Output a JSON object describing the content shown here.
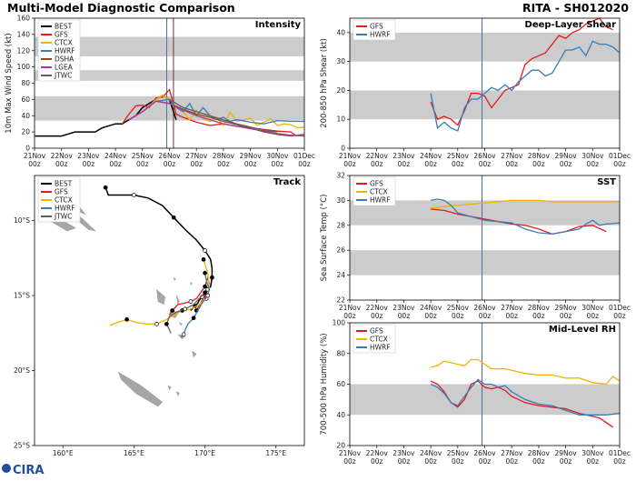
{
  "header": {
    "title": "Multi-Model Diagnostic Comparison",
    "storm": "RITA - SH012020"
  },
  "colors": {
    "BEST": "#000000",
    "GFS": "#e41a1c",
    "CTCX": "#f0b400",
    "HWRF": "#377eb8",
    "DSHA": "#8c4a1a",
    "LGEA": "#a33aa3",
    "JTWC": "#606060",
    "band": "#cccccc",
    "vline_blue": "#4a6fa5",
    "vline_dark": "#7b2c3a",
    "land": "#a6a6a6"
  },
  "logo": {
    "text": "CIRA"
  },
  "chart_data": [
    {
      "id": "intensity",
      "type": "line",
      "title": "Intensity",
      "ylabel": "10m Max Wind Speed (kt)",
      "ylim": [
        0,
        160
      ],
      "yticks": [
        0,
        20,
        40,
        60,
        80,
        100,
        120,
        140,
        160
      ],
      "xlim": [
        0,
        10
      ],
      "xticks": [
        "21Nov\n00z",
        "22Nov\n00z",
        "23Nov\n00z",
        "24Nov\n00z",
        "25Nov\n00z",
        "26Nov\n00z",
        "27Nov\n00z",
        "28Nov\n00z",
        "29Nov\n00z",
        "30Nov\n00z",
        "01Dec\n00z"
      ],
      "bands": [
        [
          34,
          64
        ],
        [
          83,
          96
        ],
        [
          113,
          137
        ]
      ],
      "vlines": [
        4.9,
        5.15
      ],
      "legend": [
        "BEST",
        "GFS",
        "CTCX",
        "HWRF",
        "DSHA",
        "LGEA",
        "JTWC"
      ],
      "series": [
        {
          "name": "BEST",
          "x": [
            0,
            0.5,
            1,
            1.5,
            2,
            2.25,
            2.5,
            3,
            3.25,
            3.5,
            3.75,
            4,
            4.25,
            4.5,
            4.75,
            5,
            5.25
          ],
          "y": [
            15,
            15,
            15,
            20,
            20,
            20,
            25,
            30,
            30,
            35,
            40,
            50,
            55,
            60,
            65,
            60,
            35
          ]
        },
        {
          "name": "GFS",
          "x": [
            3.25,
            3.5,
            3.75,
            4,
            4.25,
            4.5,
            4.75,
            5,
            5.25,
            5.5,
            6,
            6.5,
            7,
            7.5,
            8,
            8.5,
            9,
            9.5,
            9.7
          ],
          "y": [
            30,
            42,
            52,
            53,
            50,
            62,
            63,
            72,
            42,
            38,
            32,
            28,
            30,
            27,
            25,
            23,
            21,
            20,
            15
          ]
        },
        {
          "name": "CTCX",
          "x": [
            3.5,
            4,
            4.5,
            4.75,
            5,
            5.25,
            5.5,
            5.75,
            6,
            6.25,
            6.5,
            6.75,
            7,
            7.25,
            7.5,
            7.75,
            8,
            8.25,
            8.5,
            8.75,
            9,
            9.25,
            9.5,
            9.75,
            10
          ],
          "y": [
            35,
            45,
            60,
            65,
            60,
            50,
            45,
            35,
            47,
            36,
            33,
            38,
            28,
            44,
            33,
            35,
            37,
            28,
            32,
            36,
            28,
            30,
            29,
            25,
            26
          ]
        },
        {
          "name": "HWRF",
          "x": [
            3.5,
            4,
            4.5,
            5,
            5.25,
            5.5,
            5.75,
            6,
            6.25,
            6.5,
            6.75,
            7,
            7.25,
            7.5,
            8,
            8.5,
            9,
            9.5,
            10
          ],
          "y": [
            35,
            45,
            58,
            60,
            50,
            45,
            55,
            40,
            50,
            40,
            35,
            38,
            33,
            35,
            32,
            30,
            34,
            33,
            33
          ]
        },
        {
          "name": "DSHA",
          "x": [
            3.5,
            4,
            4.5,
            5,
            5.5,
            6,
            6.5,
            7,
            7.5,
            8,
            8.5,
            9,
            9.5,
            10
          ],
          "y": [
            35,
            45,
            58,
            55,
            48,
            42,
            38,
            33,
            29,
            25,
            20,
            17,
            15,
            17
          ]
        },
        {
          "name": "LGEA",
          "x": [
            3.5,
            4,
            4.5,
            5,
            5.5,
            6,
            6.5,
            7,
            7.5,
            8,
            8.5,
            9,
            9.5,
            10
          ],
          "y": [
            35,
            45,
            58,
            55,
            47,
            40,
            35,
            30,
            27,
            24,
            21,
            18,
            16,
            15
          ]
        },
        {
          "name": "JTWC",
          "x": [
            5,
            5.5,
            6,
            6.5,
            7,
            7.5,
            8,
            8.5,
            9
          ],
          "y": [
            60,
            50,
            45,
            40,
            35,
            30,
            26,
            22,
            20
          ]
        }
      ]
    },
    {
      "id": "shear",
      "type": "line",
      "title": "Deep-Layer Shear",
      "ylabel": "200-850 hPa Shear (kt)",
      "ylim": [
        0,
        45
      ],
      "yticks": [
        0,
        10,
        20,
        30,
        40
      ],
      "xlim": [
        0,
        10
      ],
      "xticks": [
        "21Nov\n00z",
        "22Nov\n00z",
        "23Nov\n00z",
        "24Nov\n00z",
        "25Nov\n00z",
        "26Nov\n00z",
        "27Nov\n00z",
        "28Nov\n00z",
        "29Nov\n00z",
        "30Nov\n00z",
        "01Dec\n00z"
      ],
      "bands": [
        [
          10,
          20
        ],
        [
          30,
          40
        ]
      ],
      "vlines": [
        4.9
      ],
      "legend": [
        "GFS",
        "HWRF"
      ],
      "series": [
        {
          "name": "GFS",
          "x": [
            3,
            3.25,
            3.5,
            3.75,
            4,
            4.25,
            4.5,
            4.75,
            5,
            5.25,
            5.5,
            5.75,
            6,
            6.25,
            6.5,
            6.75,
            7,
            7.25,
            7.5,
            7.75,
            8,
            8.25,
            8.5,
            8.75,
            9,
            9.25,
            9.5,
            9.75
          ],
          "y": [
            16,
            10,
            11,
            10,
            8,
            13,
            19,
            19,
            18,
            14,
            17,
            20,
            21,
            22,
            29,
            31,
            32,
            33,
            36,
            39,
            38,
            40,
            41,
            43,
            44,
            45,
            42,
            41
          ]
        },
        {
          "name": "HWRF",
          "x": [
            3,
            3.25,
            3.5,
            3.75,
            4,
            4.25,
            4.5,
            4.75,
            5,
            5.25,
            5.5,
            5.75,
            6,
            6.25,
            6.5,
            6.75,
            7,
            7.25,
            7.5,
            7.75,
            8,
            8.25,
            8.5,
            8.75,
            9,
            9.25,
            9.5,
            9.75,
            10
          ],
          "y": [
            19,
            7,
            9,
            7,
            6,
            14,
            17,
            17,
            19,
            21,
            20,
            22,
            20,
            23,
            25,
            27,
            27,
            25,
            26,
            30,
            34,
            34,
            35,
            32,
            37,
            36,
            36,
            35,
            33
          ]
        }
      ]
    },
    {
      "id": "sst",
      "type": "line",
      "title": "SST",
      "ylabel": "Sea Surface Temp (°C)",
      "ylim": [
        22,
        32
      ],
      "yticks": [
        22,
        24,
        26,
        28,
        30,
        32
      ],
      "xlim": [
        0,
        10
      ],
      "xticks": [
        "21Nov\n00z",
        "22Nov\n00z",
        "23Nov\n00z",
        "24Nov\n00z",
        "25Nov\n00z",
        "26Nov\n00z",
        "27Nov\n00z",
        "28Nov\n00z",
        "29Nov\n00z",
        "30Nov\n00z",
        "01Dec\n00z"
      ],
      "bands": [
        [
          24,
          26
        ],
        [
          28,
          30
        ]
      ],
      "vlines": [
        4.9
      ],
      "legend": [
        "GFS",
        "CTCX",
        "HWRF"
      ],
      "series": [
        {
          "name": "GFS",
          "x": [
            3,
            3.5,
            4,
            4.5,
            5,
            5.5,
            6,
            6.5,
            7,
            7.5,
            8,
            8.5,
            9,
            9.5
          ],
          "y": [
            29.3,
            29.2,
            28.9,
            28.7,
            28.5,
            28.3,
            28.1,
            28.0,
            27.7,
            27.3,
            27.5,
            27.9,
            28.0,
            27.5
          ]
        },
        {
          "name": "CTCX",
          "x": [
            3,
            3.5,
            4,
            4.5,
            5,
            5.5,
            6,
            6.5,
            7,
            7.5,
            8,
            8.5,
            9,
            9.5,
            10
          ],
          "y": [
            29.4,
            29.5,
            29.6,
            29.7,
            29.8,
            29.9,
            30.0,
            30.0,
            30.0,
            29.9,
            29.9,
            29.9,
            29.9,
            29.9,
            29.9
          ]
        },
        {
          "name": "HWRF",
          "x": [
            3,
            3.25,
            3.5,
            3.75,
            4,
            4.5,
            5,
            5.5,
            6,
            6.5,
            7,
            7.5,
            8,
            8.5,
            8.75,
            9,
            9.25,
            9.5,
            10
          ],
          "y": [
            30.0,
            30.1,
            30.0,
            29.6,
            29.0,
            28.7,
            28.4,
            28.3,
            28.2,
            27.7,
            27.4,
            27.3,
            27.5,
            27.7,
            28.1,
            28.4,
            28.0,
            28.1,
            28.2
          ]
        }
      ]
    },
    {
      "id": "rh",
      "type": "line",
      "title": "Mid-Level RH",
      "ylabel": "700-500 hPa Humidity (%)",
      "ylim": [
        20,
        100
      ],
      "yticks": [
        20,
        40,
        60,
        80,
        100
      ],
      "xlim": [
        0,
        10
      ],
      "xticks": [
        "21Nov\n00z",
        "22Nov\n00z",
        "23Nov\n00z",
        "24Nov\n00z",
        "25Nov\n00z",
        "26Nov\n00z",
        "27Nov\n00z",
        "28Nov\n00z",
        "29Nov\n00z",
        "30Nov\n00z",
        "01Dec\n00z"
      ],
      "bands": [
        [
          40,
          60
        ]
      ],
      "vlines": [
        4.9
      ],
      "legend": [
        "GFS",
        "CTCX",
        "HWRF"
      ],
      "series": [
        {
          "name": "GFS",
          "x": [
            3,
            3.25,
            3.5,
            3.75,
            4,
            4.25,
            4.5,
            4.75,
            5,
            5.25,
            5.5,
            5.75,
            6,
            6.5,
            7,
            7.5,
            8,
            8.5,
            9,
            9.25,
            9.5,
            9.75
          ],
          "y": [
            62,
            60,
            55,
            48,
            45,
            50,
            60,
            62,
            58,
            57,
            58,
            56,
            52,
            48,
            46,
            45,
            44,
            41,
            39,
            38,
            35,
            32
          ]
        },
        {
          "name": "CTCX",
          "x": [
            3,
            3.25,
            3.5,
            3.75,
            4,
            4.25,
            4.5,
            4.75,
            5,
            5.25,
            5.5,
            5.75,
            6,
            6.5,
            7,
            7.5,
            8,
            8.5,
            9,
            9.5,
            9.75,
            10
          ],
          "y": [
            71,
            72,
            75,
            74,
            73,
            72,
            76,
            76,
            73,
            70,
            70,
            70,
            69,
            67,
            66,
            66,
            64,
            64,
            61,
            60,
            65,
            62
          ]
        },
        {
          "name": "HWRF",
          "x": [
            3,
            3.25,
            3.5,
            3.75,
            4,
            4.25,
            4.5,
            4.75,
            5,
            5.25,
            5.5,
            5.75,
            6,
            6.5,
            7,
            7.5,
            8,
            8.5,
            9,
            9.5,
            10
          ],
          "y": [
            60,
            58,
            54,
            48,
            46,
            52,
            58,
            63,
            60,
            60,
            58,
            59,
            55,
            50,
            47,
            46,
            43,
            40,
            40,
            40,
            41
          ]
        }
      ]
    },
    {
      "id": "track",
      "type": "scatter",
      "title": "Track",
      "xlim": [
        158,
        177
      ],
      "ylim": [
        -25,
        -7
      ],
      "xticks": [
        160,
        165,
        170,
        175
      ],
      "xticklabels": [
        "160°E",
        "165°E",
        "170°E",
        "175°E"
      ],
      "yticks": [
        -10,
        -15,
        -20,
        -25
      ],
      "yticklabels": [
        "10°S",
        "15°S",
        "20°S",
        "25°S"
      ],
      "legend": [
        "BEST",
        "GFS",
        "CTCX",
        "HWRF",
        "JTWC"
      ],
      "series": [
        {
          "name": "BEST",
          "x": [
            163.0,
            163.2,
            164.0,
            165.0,
            166.0,
            167.0,
            167.8,
            168.6,
            169.4,
            170.0,
            170.4,
            170.5,
            170.5,
            170.4,
            170.0,
            169.8,
            169.6,
            169.5,
            169.3,
            169.0
          ],
          "y": [
            -7.8,
            -8.3,
            -8.3,
            -8.3,
            -8.5,
            -9.0,
            -9.8,
            -10.6,
            -11.3,
            -12.0,
            -12.6,
            -13.2,
            -13.8,
            -14.4,
            -14.8,
            -15.1,
            -15.3,
            -15.5,
            -15.7,
            -16.0
          ]
        },
        {
          "name": "GFS",
          "x": [
            169.4,
            169.7,
            170.0,
            170.2,
            170.3,
            170.2,
            170.0,
            169.7,
            169.4,
            169.0,
            168.6,
            168.1,
            167.7,
            167.5
          ],
          "y": [
            -16.0,
            -15.5,
            -15.0,
            -14.6,
            -14.2,
            -13.8,
            -14.4,
            -14.8,
            -15.2,
            -15.4,
            -15.5,
            -15.6,
            -16.0,
            -16.3
          ]
        },
        {
          "name": "CTCX",
          "x": [
            169.9,
            170.2,
            170.3,
            170.1,
            169.6,
            169.0,
            168.4,
            167.8,
            167.3,
            166.6,
            165.9,
            165.2,
            164.5,
            163.8,
            163.3
          ],
          "y": [
            -12.6,
            -13.5,
            -14.5,
            -15.2,
            -15.6,
            -15.9,
            -16.0,
            -16.3,
            -16.6,
            -16.9,
            -16.9,
            -16.8,
            -16.6,
            -16.8,
            -17.0
          ]
        },
        {
          "name": "HWRF",
          "x": [
            170.0,
            170.1,
            170.3,
            170.2,
            169.8,
            169.5,
            169.2,
            168.8,
            168.6,
            168.5,
            168.3
          ],
          "y": [
            -13.5,
            -14.0,
            -14.6,
            -15.0,
            -15.5,
            -16.0,
            -16.5,
            -16.9,
            -17.3,
            -17.6,
            -17.8
          ]
        },
        {
          "name": "JTWC",
          "x": [
            170.0,
            169.6,
            169.2,
            168.6,
            168.0,
            167.5,
            167.3,
            167.6
          ],
          "y": [
            -14.8,
            -15.2,
            -15.6,
            -15.9,
            -16.1,
            -16.4,
            -16.9,
            -17.5
          ]
        }
      ]
    }
  ]
}
